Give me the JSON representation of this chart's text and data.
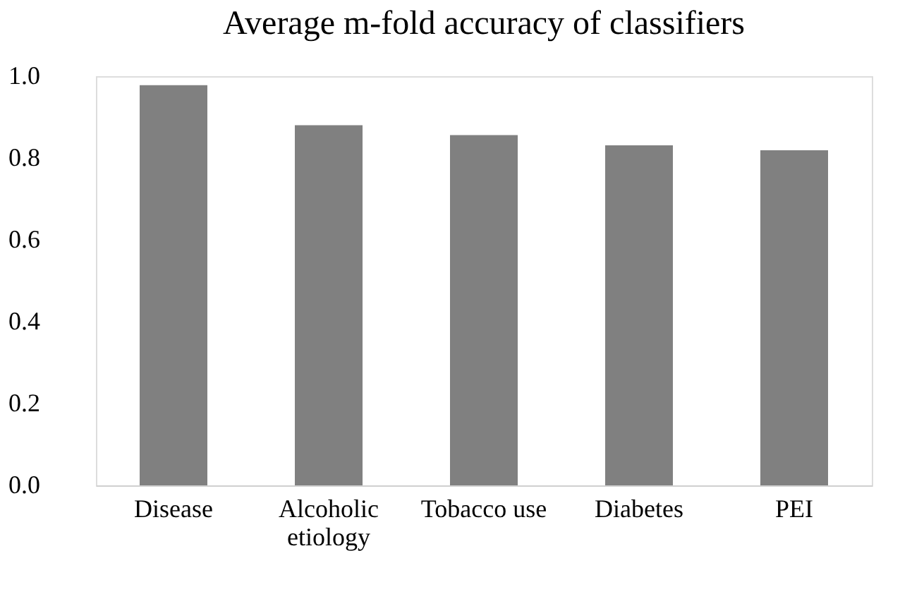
{
  "chart_data": {
    "type": "bar",
    "title": "Average m-fold accuracy of classifiers",
    "categories": [
      "Disease",
      "Alcoholic etiology",
      "Tobacco use",
      "Diabetes",
      "PEI"
    ],
    "values": [
      0.978,
      0.88,
      0.856,
      0.831,
      0.819
    ],
    "color": "#808080",
    "ylim": [
      0,
      1.0
    ],
    "yticks": [
      {
        "value": 0,
        "label": "0.0"
      },
      {
        "value": 0.2,
        "label": "0.2"
      },
      {
        "value": 0.4,
        "label": "0.4"
      },
      {
        "value": 0.6,
        "label": "0.6"
      },
      {
        "value": 0.8,
        "label": "0.8"
      },
      {
        "value": 1.0,
        "label": "1.0"
      }
    ],
    "grid": false
  }
}
